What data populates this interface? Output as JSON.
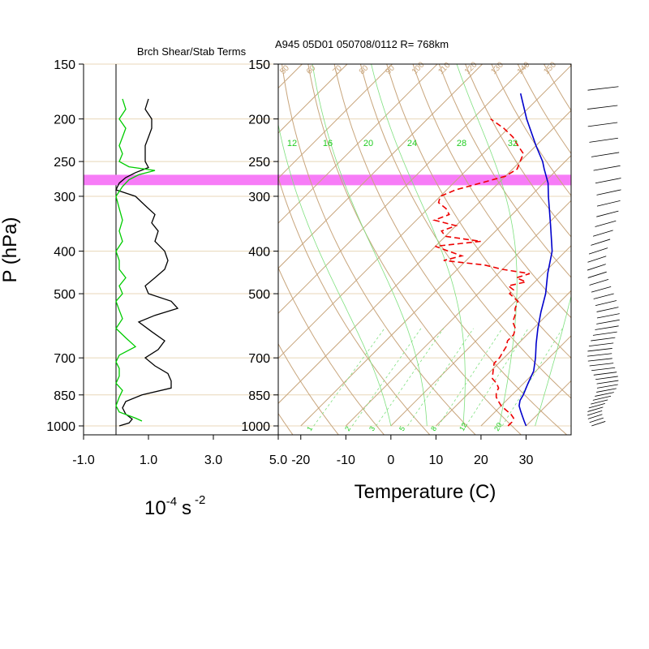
{
  "header": {
    "left_title": "Brch Shear/Stab Terms",
    "right_title": "A945 05D01 050708/0112 R= 768km"
  },
  "axes": {
    "y_label": "P (hPa)",
    "left_x_label_base": "10",
    "left_x_label_exp": "-4",
    "left_x_label_unit": "s",
    "left_x_label_unit_exp": "-2",
    "right_x_label": "Temperature (C)"
  },
  "chart_data": [
    {
      "type": "line",
      "name": "stability-panel",
      "y_scale": "log",
      "ylim": [
        1000,
        150
      ],
      "xlim": [
        -1.0,
        5.0
      ],
      "x_ticks": [
        "-1.0",
        "1.0",
        "3.0",
        "5.0"
      ],
      "x_tick_values": [
        -1.0,
        1.0,
        3.0,
        5.0
      ],
      "y_ticks": [
        150,
        200,
        250,
        300,
        400,
        500,
        700,
        850,
        1000
      ],
      "y_tick_labels": [
        "150",
        "200",
        "250",
        "300",
        "400",
        "500",
        "700",
        "850",
        "1000"
      ],
      "highlight_band_p": [
        268,
        283
      ],
      "highlight_color": "#f77cf7",
      "series": [
        {
          "color": "#000000",
          "p": [
            1000,
            985,
            965,
            940,
            910,
            880,
            850,
            820,
            790,
            760,
            730,
            700,
            670,
            640,
            610,
            580,
            560,
            540,
            520,
            500,
            480,
            460,
            440,
            420,
            400,
            380,
            360,
            345,
            330,
            315,
            300,
            290,
            280,
            272,
            265,
            258,
            250,
            240,
            230,
            220,
            210,
            200,
            190,
            180
          ],
          "x": [
            0.1,
            0.4,
            0.5,
            0.3,
            0.2,
            0.3,
            0.8,
            1.7,
            1.7,
            1.6,
            1.2,
            0.9,
            1.3,
            1.5,
            1.1,
            0.7,
            1.2,
            1.9,
            1.7,
            1.0,
            0.9,
            1.2,
            1.5,
            1.6,
            1.5,
            1.2,
            1.3,
            1.1,
            1.2,
            0.9,
            0.6,
            0.0,
            0.1,
            0.3,
            0.6,
            1.0,
            0.9,
            0.9,
            0.9,
            1.0,
            1.1,
            1.1,
            0.9,
            1.0
          ]
        },
        {
          "color": "#00cc00",
          "p": [
            975,
            960,
            930,
            900,
            860,
            830,
            800,
            770,
            740,
            715,
            690,
            660,
            630,
            600,
            570,
            545,
            520,
            500,
            480,
            460,
            440,
            420,
            400,
            380,
            360,
            340,
            320,
            300,
            285,
            275,
            268,
            262,
            257,
            250,
            240,
            230,
            220,
            210,
            200,
            190,
            180
          ],
          "x": [
            0.8,
            0.6,
            0.1,
            0.0,
            0.1,
            0.2,
            0.0,
            0.1,
            0.1,
            0.0,
            0.1,
            0.6,
            0.3,
            0.0,
            0.2,
            0.1,
            0.0,
            0.2,
            0.1,
            0.3,
            0.1,
            0.1,
            0.0,
            0.2,
            0.1,
            0.2,
            0.1,
            0.0,
            0.2,
            0.4,
            0.7,
            1.2,
            0.4,
            0.1,
            0.2,
            0.1,
            0.2,
            0.3,
            0.1,
            0.3,
            0.2
          ]
        }
      ]
    },
    {
      "type": "line",
      "name": "skew-t-panel",
      "y_scale": "log",
      "ylim": [
        1000,
        150
      ],
      "xlim": [
        -25,
        40
      ],
      "x_ticks": [
        "-20",
        "-10",
        "0",
        "10",
        "20",
        "30"
      ],
      "x_tick_values": [
        -20,
        -10,
        0,
        10,
        20,
        30
      ],
      "y_ticks": [
        150,
        200,
        250,
        300,
        400,
        500,
        700,
        850,
        1000
      ],
      "y_tick_labels": [
        "150",
        "200",
        "250",
        "300",
        "400",
        "500",
        "700",
        "850",
        "1000"
      ],
      "isotherm_top_labels": [
        "50",
        "60",
        "70",
        "80",
        "90",
        "100",
        "110",
        "120",
        "130",
        "140",
        "150"
      ],
      "mixing_ratio_top_labels": [
        "12",
        "16",
        "20",
        "24",
        "28",
        "32"
      ],
      "mixing_ratio_bottom_labels": [
        "1",
        "2",
        "3",
        "5",
        "8",
        "12",
        "20"
      ],
      "series": [
        {
          "name": "Temperature",
          "color": "#0000cc",
          "p": [
            1000,
            975,
            950,
            925,
            900,
            875,
            850,
            800,
            750,
            700,
            650,
            600,
            550,
            500,
            450,
            400,
            350,
            300,
            280,
            260,
            250,
            230,
            200,
            175
          ],
          "t": [
            30,
            28.5,
            27,
            25.5,
            24,
            23,
            22.5,
            21,
            19.5,
            17,
            14,
            11,
            8,
            5,
            1,
            -3,
            -9,
            -16,
            -19,
            -23,
            -25,
            -30,
            -38,
            -45
          ]
        },
        {
          "name": "Dewpoint",
          "color": "#ee0000",
          "p": [
            1000,
            980,
            960,
            940,
            920,
            900,
            880,
            860,
            840,
            820,
            800,
            780,
            760,
            740,
            720,
            700,
            680,
            660,
            640,
            620,
            600,
            580,
            560,
            540,
            520,
            500,
            490,
            480,
            470,
            460,
            450,
            440,
            430,
            420,
            410,
            400,
            390,
            380,
            370,
            360,
            350,
            340,
            330,
            320,
            310,
            300,
            290,
            280,
            270,
            260,
            250,
            240,
            230,
            220,
            210,
            200
          ],
          "t": [
            26,
            26,
            25.5,
            24,
            22,
            20,
            18.5,
            17,
            16,
            15.5,
            14,
            12,
            11,
            10,
            9,
            9,
            8.5,
            8,
            7,
            7,
            6,
            4,
            3,
            1.5,
            0.5,
            -3,
            -3,
            -5,
            -2,
            -5,
            -3,
            -10,
            -15,
            -25,
            -22,
            -26,
            -30,
            -21,
            -30,
            -32,
            -30,
            -36,
            -34,
            -36,
            -39,
            -40,
            -38,
            -34,
            -30,
            -29,
            -30,
            -31,
            -34,
            -37,
            -41,
            -46
          ]
        }
      ]
    }
  ]
}
